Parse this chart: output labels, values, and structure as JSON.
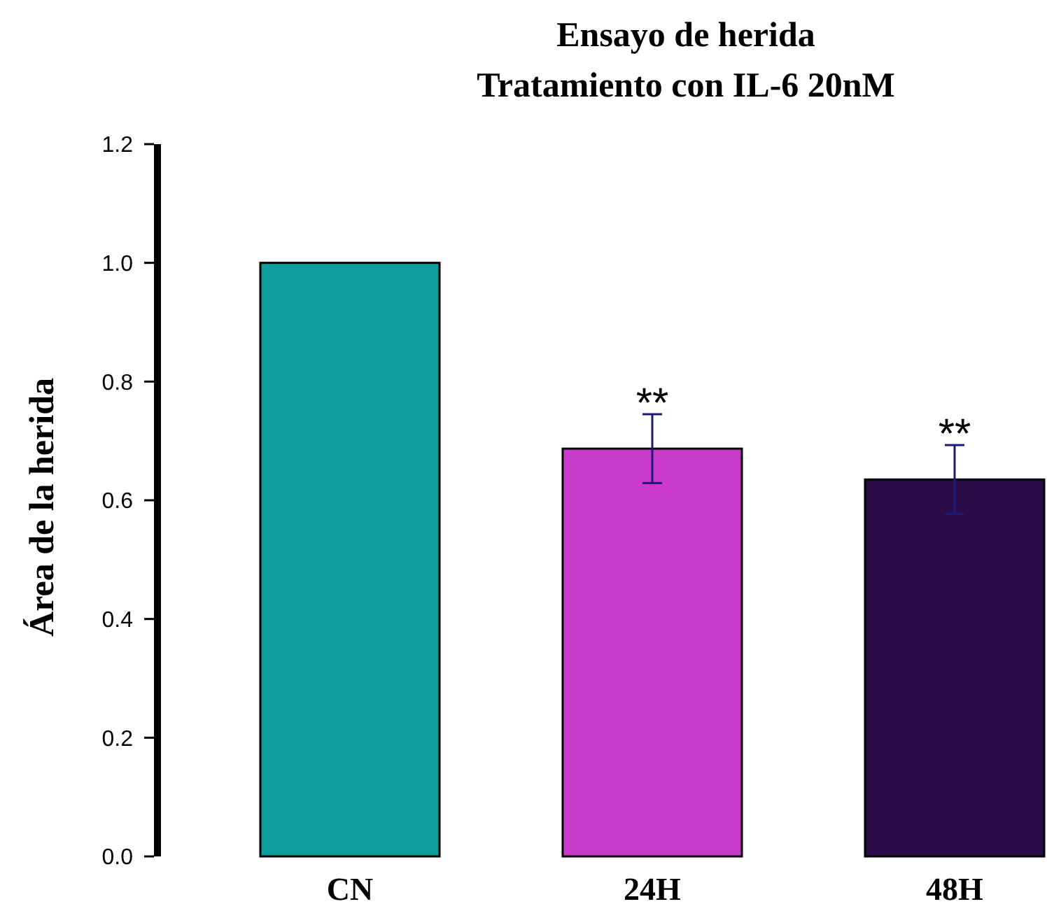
{
  "chart_data": {
    "type": "bar",
    "title": "Ensayo de herida\nTratamiento con IL-6 20nM",
    "ylabel": "Área de la herida",
    "categories": [
      "CN",
      "24H",
      "48H"
    ],
    "values": [
      1.0,
      0.687,
      0.635
    ],
    "colors": [
      "#0e9e9e",
      "#c93ac9",
      "#2c0c48"
    ],
    "errors": [
      null,
      0.058,
      0.058
    ],
    "ylim": [
      0,
      1.2
    ],
    "yticks": [
      {
        "value": 0,
        "label": "0.0"
      },
      {
        "value": 0.2,
        "label": "0.2"
      },
      {
        "value": 0.4,
        "label": "0.4"
      },
      {
        "value": 0.6,
        "label": "0.6"
      },
      {
        "value": 0.8,
        "label": "0.8"
      },
      {
        "value": 1.0,
        "label": "1.0"
      },
      {
        "value": 1.2,
        "label": "1.2"
      }
    ],
    "grid": false,
    "annotations": [
      {
        "text": "**",
        "x": "24H",
        "y": 0.745
      },
      {
        "text": "**",
        "x": "48H",
        "y": 0.693
      }
    ]
  }
}
